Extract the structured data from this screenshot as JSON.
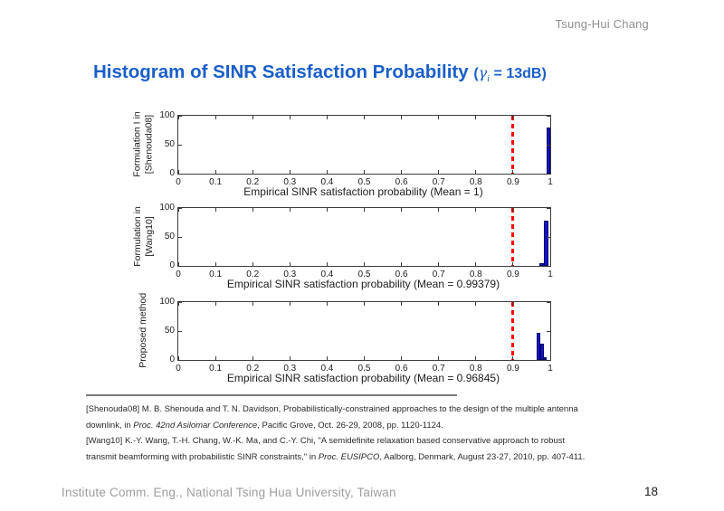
{
  "header": {
    "author": "Tsung-Hui Chang"
  },
  "title": {
    "main": "Histogram of SINR Satisfaction Probability ",
    "paren_open": "(",
    "gamma": "γ",
    "gamma_sub": "i",
    "condition": " = 13",
    "unit": "dB",
    "paren_close": ")"
  },
  "chart_data": [
    {
      "type": "bar",
      "ylabel_lines": [
        "Formulation I in",
        "[Shenouda08]"
      ],
      "xlabel": "Empirical SINR satisfaction probability (Mean = 1)",
      "mean_label": "Mean = 1",
      "xlim": [
        0,
        1
      ],
      "ylim": [
        0,
        100
      ],
      "xticks": [
        "0",
        "0.1",
        "0.2",
        "0.3",
        "0.4",
        "0.5",
        "0.6",
        "0.7",
        "0.8",
        "0.9",
        "1"
      ],
      "yticks": [
        "0",
        "50",
        "100"
      ],
      "grid": false,
      "threshold_x": 0.9,
      "bars": [
        {
          "x0": 0.99,
          "x1": 1.0,
          "height": 80
        }
      ]
    },
    {
      "type": "bar",
      "ylabel_lines": [
        "Formulation in",
        "[Wang10]"
      ],
      "xlabel": "Empirical SINR satisfaction probability (Mean = 0.99379)",
      "mean_label": "Mean = 0.99379",
      "xlim": [
        0,
        1
      ],
      "ylim": [
        0,
        100
      ],
      "xticks": [
        "0",
        "0.1",
        "0.2",
        "0.3",
        "0.4",
        "0.5",
        "0.6",
        "0.7",
        "0.8",
        "0.9",
        "1"
      ],
      "yticks": [
        "0",
        "50",
        "100"
      ],
      "grid": false,
      "threshold_x": 0.9,
      "bars": [
        {
          "x0": 0.972,
          "x1": 0.982,
          "height": 4
        },
        {
          "x0": 0.982,
          "x1": 0.995,
          "height": 78
        }
      ]
    },
    {
      "type": "bar",
      "ylabel_lines": [
        "Proposed method"
      ],
      "xlabel": "Empirical SINR satisfaction probability (Mean = 0.96845)",
      "mean_label": "Mean = 0.96845",
      "xlim": [
        0,
        1
      ],
      "ylim": [
        0,
        100
      ],
      "xticks": [
        "0",
        "0.1",
        "0.2",
        "0.3",
        "0.4",
        "0.5",
        "0.6",
        "0.7",
        "0.8",
        "0.9",
        "1"
      ],
      "yticks": [
        "0",
        "50",
        "100"
      ],
      "grid": false,
      "threshold_x": 0.9,
      "bars": [
        {
          "x0": 0.963,
          "x1": 0.973,
          "height": 47
        },
        {
          "x0": 0.973,
          "x1": 0.983,
          "height": 28
        },
        {
          "x0": 0.983,
          "x1": 0.991,
          "height": 4
        }
      ]
    }
  ],
  "footnote": {
    "lines": [
      [
        {
          "text": "[Shenouda08] M. B. Shenouda and T. N. Davidson, Probabilistically-constrained approaches to the design of the multiple antenna",
          "italic": false
        }
      ],
      [
        {
          "text": "downlink, in ",
          "italic": false
        },
        {
          "text": "Proc. 42nd Asilomar Conference",
          "italic": true
        },
        {
          "text": ", Pacific Grove, Oct. 26-29, 2008, pp. 1120-1124.",
          "italic": false
        }
      ],
      [
        {
          "text": "[Wang10] K.-Y. Wang, T.-H. Chang, W.-K. Ma, and C.-Y. Chi, \"A semidefinite relaxation based conservative approach to robust",
          "italic": false
        }
      ],
      [
        {
          "text": "transmit beamforming with probabilistic SINR constraints,\" in ",
          "italic": false
        },
        {
          "text": "Proc. EUSIPCO",
          "italic": true
        },
        {
          "text": ", Aalborg, Denmark, August 23-27, 2010, pp. 407-411.",
          "italic": false
        }
      ]
    ]
  },
  "footer": {
    "institute": "Institute Comm. Eng., National Tsing Hua University, Taiwan",
    "page": "18"
  },
  "colors": {
    "title_blue": "#1a5fc8",
    "bar_fill": "#1212cc",
    "bar_edge": "#050566",
    "threshold_red": "#ff0000",
    "axis": "#3c3c3c",
    "muted_gray": "#9e9e9e"
  }
}
